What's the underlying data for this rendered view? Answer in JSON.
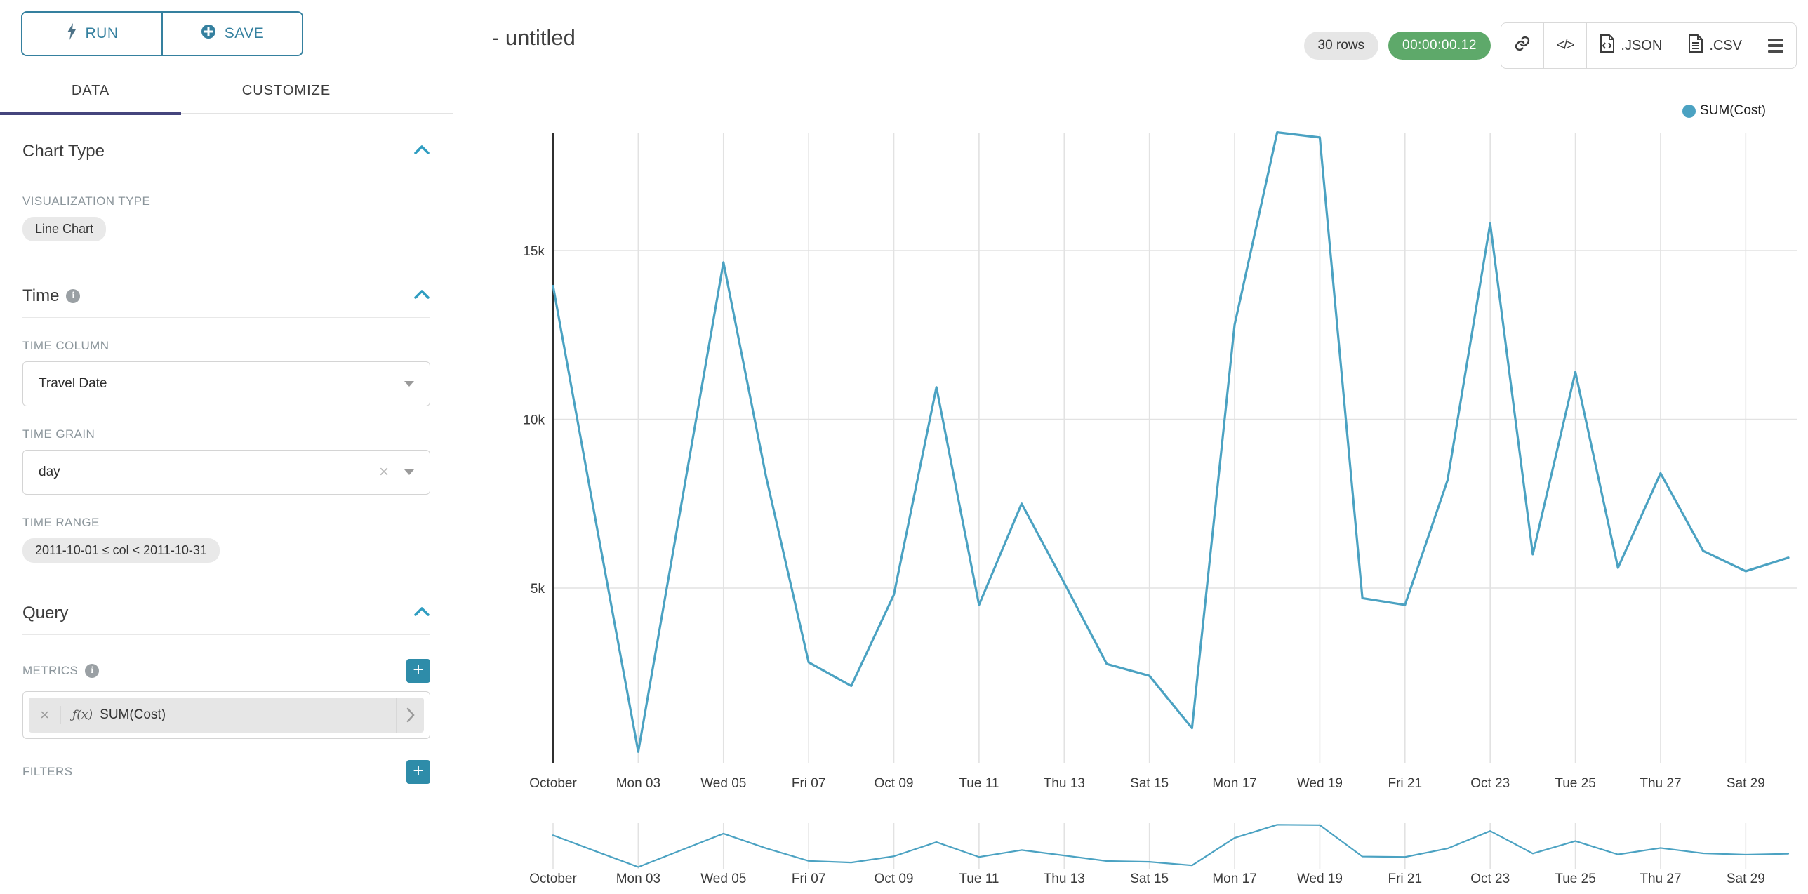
{
  "sidebar": {
    "run_button": {
      "label": "RUN"
    },
    "save_button": {
      "label": "SAVE"
    },
    "tabs": {
      "data": "DATA",
      "customize": "CUSTOMIZE"
    },
    "chart_type_section": {
      "title": "Chart Type",
      "visualization_type_label": "VISUALIZATION TYPE",
      "visualization_type_value": "Line Chart"
    },
    "time_section": {
      "title": "Time",
      "time_column_label": "TIME COLUMN",
      "time_column_value": "Travel Date",
      "time_grain_label": "TIME GRAIN",
      "time_grain_value": "day",
      "time_range_label": "TIME RANGE",
      "time_range_value": "2011-10-01 ≤ col < 2011-10-31"
    },
    "query_section": {
      "title": "Query",
      "metrics_label": "METRICS",
      "metric_fx": "ƒ(x)",
      "metric_value": "SUM(Cost)",
      "filters_label": "FILTERS"
    }
  },
  "header": {
    "title": "- untitled",
    "rows_badge": "30 rows",
    "timer_badge": "00:00:00.12",
    "export_json_label": ".JSON",
    "export_csv_label": ".CSV"
  },
  "legend": {
    "series_label": "SUM(Cost)"
  },
  "colors": {
    "accent": "#35809f",
    "line": "#4ba2c2",
    "tab_underline": "#45457d",
    "timer_green": "#5ea96a",
    "plus_button": "#2e8ca9",
    "gridline": "#e2e2e2",
    "axis": "#2f2f2f"
  },
  "chart_data": {
    "type": "line",
    "title": "",
    "x_start_date": "2011-10-01",
    "points": 30,
    "series": [
      {
        "name": "SUM(Cost)",
        "values": [
          13950,
          7000,
          150,
          7400,
          14650,
          8300,
          2800,
          2100,
          4800,
          10950,
          4500,
          7500,
          5150,
          2750,
          2400,
          850,
          12800,
          18500,
          18350,
          4700,
          4500,
          8200,
          15800,
          6000,
          11400,
          5600,
          8400,
          6100,
          5500,
          5900
        ]
      }
    ],
    "x_tick_labels": [
      "October",
      "Mon 03",
      "Wed 05",
      "Fri 07",
      "Oct 09",
      "Tue 11",
      "Thu 13",
      "Sat 15",
      "Mon 17",
      "Wed 19",
      "Fri 21",
      "Oct 23",
      "Tue 25",
      "Thu 27",
      "Sat 29"
    ],
    "y_ticks": [
      5000,
      10000,
      15000
    ],
    "y_tick_labels": [
      "5k",
      "10k",
      "15k"
    ],
    "ylim": [
      0,
      18600
    ],
    "grid": true,
    "legend_position": "top-right",
    "line_color": "#4ba2c2",
    "has_brush_minimap": true
  }
}
